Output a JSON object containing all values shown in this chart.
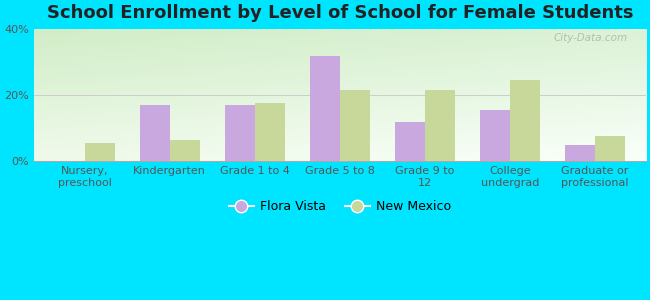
{
  "title": "School Enrollment by Level of School for Female Students",
  "categories": [
    "Nursery,\npreschool",
    "Kindergarten",
    "Grade 1 to 4",
    "Grade 5 to 8",
    "Grade 9 to\n12",
    "College\nundergrad",
    "Graduate or\nprofessional"
  ],
  "flora_vista": [
    0.0,
    17.0,
    17.0,
    32.0,
    12.0,
    15.5,
    5.0
  ],
  "new_mexico": [
    5.5,
    6.5,
    17.5,
    21.5,
    21.5,
    24.5,
    7.5
  ],
  "flora_vista_color": "#c9a8e0",
  "new_mexico_color": "#c8d89a",
  "background_outer": "#00e5ff",
  "ylim": [
    0,
    40
  ],
  "yticks": [
    0,
    20,
    40
  ],
  "ytick_labels": [
    "0%",
    "20%",
    "40%"
  ],
  "legend_flora": "Flora Vista",
  "legend_nm": "New Mexico",
  "bar_width": 0.35,
  "title_fontsize": 13,
  "tick_fontsize": 8,
  "legend_fontsize": 9,
  "watermark": "City-Data.com"
}
